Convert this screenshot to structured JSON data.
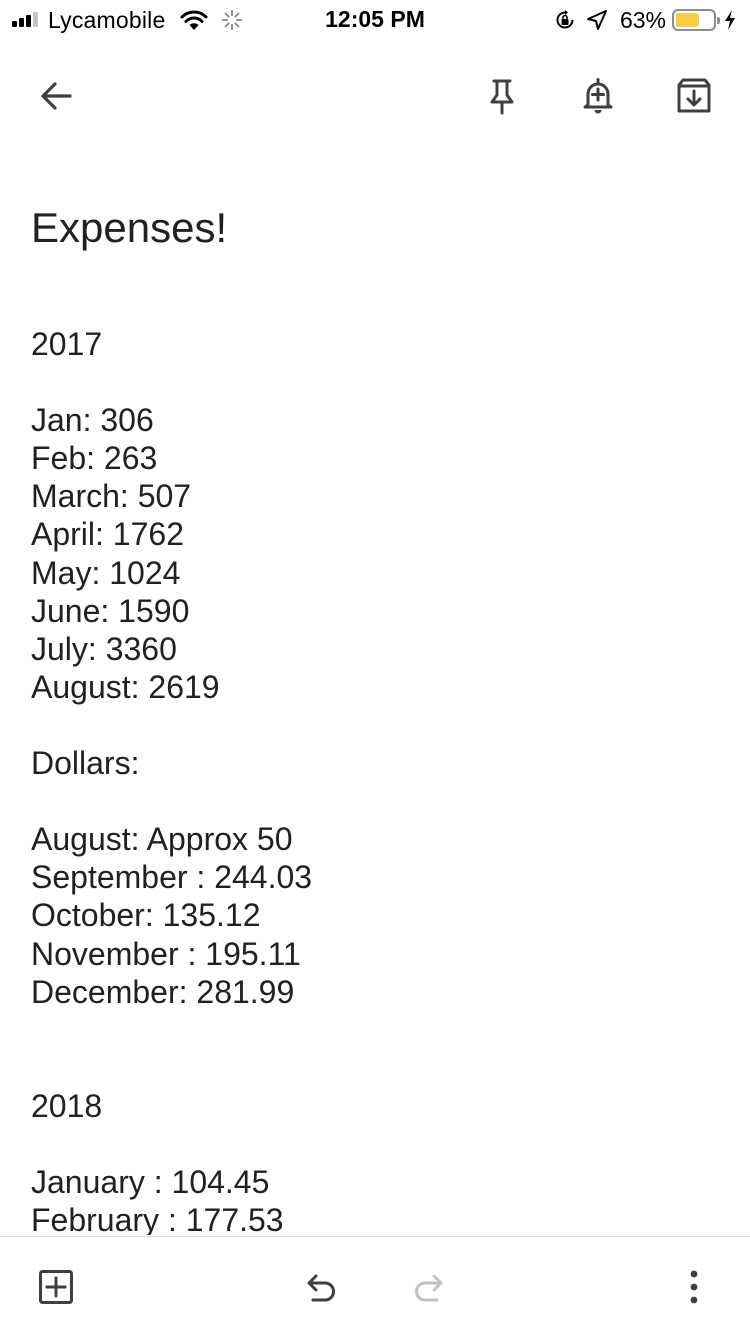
{
  "status_bar": {
    "carrier": "Lycamobile",
    "time": "12:05 PM",
    "battery_percent": "63%",
    "battery_level": 0.63,
    "battery_color": "#f7ce46",
    "signal_bars_filled": 3,
    "signal_bars_total": 4,
    "icons": [
      "signal-icon",
      "wifi-icon",
      "activity-spinner-icon",
      "orientation-lock-icon",
      "location-arrow-icon",
      "battery-icon",
      "charging-bolt-icon"
    ]
  },
  "toolbar": {
    "icons": [
      "back-arrow-icon",
      "pin-icon",
      "add-reminder-icon",
      "archive-icon"
    ]
  },
  "note": {
    "title": "Expenses!",
    "lines": [
      "2017",
      "",
      "Jan: 306",
      "Feb: 263",
      "March: 507",
      "April: 1762",
      "May: 1024",
      "June: 1590",
      "July: 3360",
      "August: 2619",
      "",
      "Dollars:",
      "",
      "August: Approx 50",
      "September : 244.03",
      "October: 135.12",
      "November : 195.11",
      "December: 281.99",
      "",
      "",
      "2018",
      "",
      "January : 104.45",
      "February : 177.53"
    ]
  },
  "bottom_bar": {
    "icons": [
      "add-box-icon",
      "undo-icon",
      "redo-icon",
      "more-options-icon"
    ],
    "redo_enabled": false
  },
  "colors": {
    "text": "#202124",
    "icon": "#5f6368",
    "disabled_icon": "#bdc1c6",
    "divider": "#dadce0"
  }
}
